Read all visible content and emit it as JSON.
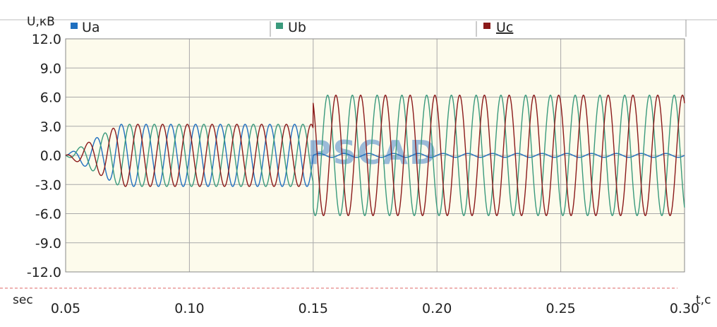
{
  "chart_data": {
    "type": "line",
    "ylabel": "U,кВ",
    "xlabel": "t,c",
    "x_prefix_label": "sec",
    "watermark": "PSCAD",
    "xlim": [
      0.05,
      0.3
    ],
    "ylim": [
      -12.0,
      12.0
    ],
    "x_ticks": [
      0.05,
      0.1,
      0.15,
      0.2,
      0.25,
      0.3
    ],
    "x_tick_labels": [
      "0.05",
      "0.10",
      "0.15",
      "0.20",
      "0.25",
      "0.30"
    ],
    "y_ticks": [
      12,
      9,
      6,
      3,
      0,
      -3,
      -6,
      -9,
      -12
    ],
    "y_tick_labels": [
      "12.0",
      "9.0",
      "6.0",
      "3.0",
      "0.0",
      "-3.0",
      "-6.0",
      "-9.0",
      "-12.0"
    ],
    "grid": true,
    "background_color": "#fdfbec",
    "frequency_hz": 100,
    "series": [
      {
        "name": "Ua",
        "color": "#1f6fbf",
        "phase_deg": 0,
        "segments": [
          {
            "t_start": 0.05,
            "t_end": 0.072,
            "amplitude_start": 0.0,
            "amplitude_end": 3.2
          },
          {
            "t_start": 0.072,
            "t_end": 0.15,
            "amplitude": 3.2
          },
          {
            "t_start": 0.15,
            "t_end": 0.3,
            "amplitude": 0.2
          }
        ]
      },
      {
        "name": "Ub",
        "color": "#3a9a7c",
        "phase_deg": -120,
        "segments": [
          {
            "t_start": 0.05,
            "t_end": 0.072,
            "amplitude_start": 0.0,
            "amplitude_end": 3.2
          },
          {
            "t_start": 0.072,
            "t_end": 0.15,
            "amplitude": 3.2
          },
          {
            "t_start": 0.15,
            "t_end": 0.3,
            "amplitude": 6.2
          }
        ]
      },
      {
        "name": "Uc",
        "color": "#8b1a1a",
        "phase_deg": 120,
        "segments": [
          {
            "t_start": 0.05,
            "t_end": 0.072,
            "amplitude_start": 0.0,
            "amplitude_end": 3.2
          },
          {
            "t_start": 0.072,
            "t_end": 0.15,
            "amplitude": 3.2
          },
          {
            "t_start": 0.15,
            "t_end": 0.3,
            "amplitude": 6.2
          }
        ]
      }
    ],
    "legend": {
      "placement": "top",
      "entries": [
        "Ua",
        "Ub",
        "Uc"
      ]
    }
  }
}
